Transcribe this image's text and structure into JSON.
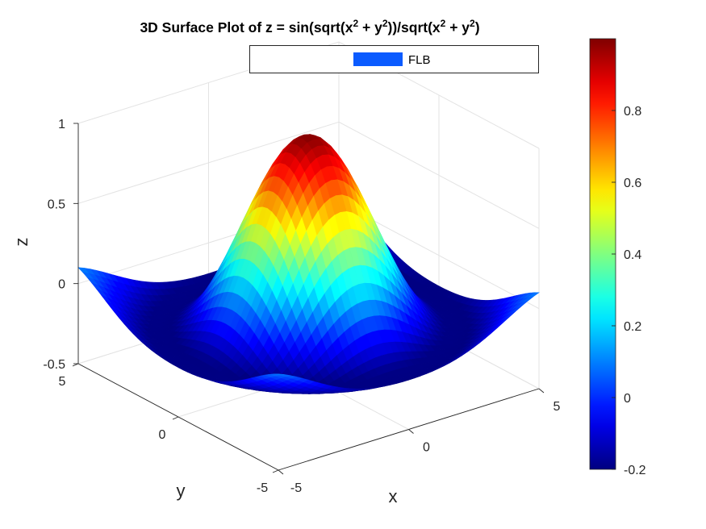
{
  "chart_data": {
    "type": "surface",
    "title": {
      "prefix": "3D Surface Plot of z = sin(sqrt(x",
      "sup1": "2",
      "mid1": " + y",
      "sup2": "2",
      "mid2": "))/sqrt(x",
      "sup3": "2",
      "mid3": " + y",
      "sup4": "2",
      "suffix": ")"
    },
    "function": "z = sin(sqrt(x^2 + y^2))/sqrt(x^2 + y^2)",
    "xlabel": "x",
    "ylabel": "y",
    "zlabel": "z",
    "xlim": [
      -5,
      5
    ],
    "ylim": [
      -5,
      5
    ],
    "zlim": [
      -0.5,
      1
    ],
    "xticks": [
      "-5",
      "0",
      "5"
    ],
    "yticks": [
      "-5",
      "0",
      "5"
    ],
    "zticks": [
      "-0.5",
      "0",
      "0.5",
      "1"
    ],
    "grid": true,
    "colormap": "jet",
    "colorbar": {
      "limits": [
        -0.2,
        1
      ],
      "ticks": [
        "-0.2",
        "0",
        "0.2",
        "0.4",
        "0.6",
        "0.8"
      ]
    },
    "legend": {
      "placement": "top",
      "entries": [
        {
          "name": "FLB",
          "color": "#0b5bff"
        }
      ]
    }
  }
}
